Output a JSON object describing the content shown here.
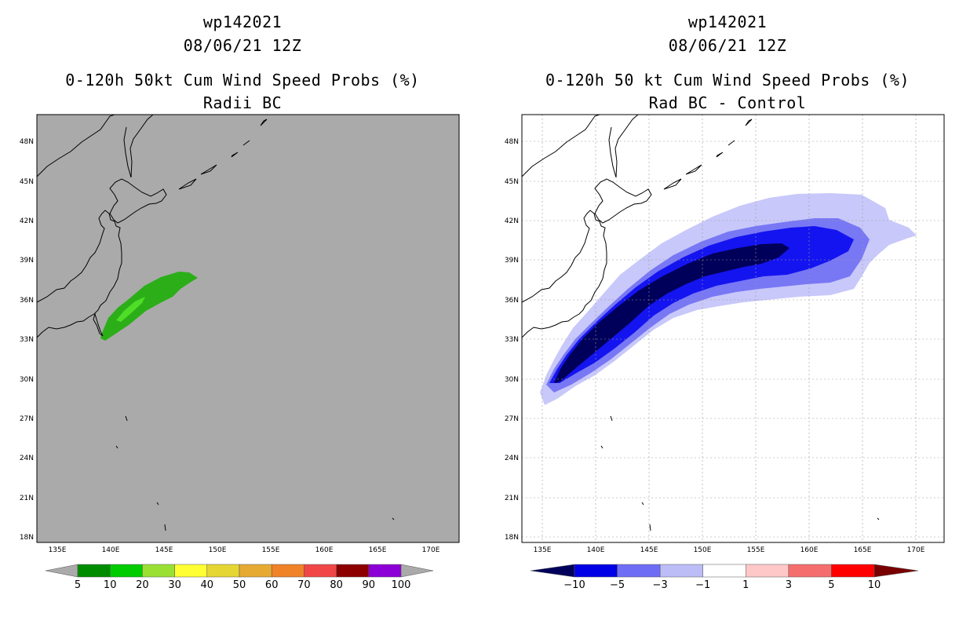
{
  "left_panel": {
    "title_line1": "wp142021",
    "title_line2": "08/06/21 12Z",
    "title_line3": "0-120h 50kt Cum Wind Speed Probs (%)",
    "title_line4": "Radii BC",
    "lon_labels": [
      "135E",
      "140E",
      "145E",
      "150E",
      "155E",
      "160E",
      "165E",
      "170E"
    ],
    "lat_labels": [
      "48N",
      "45N",
      "42N",
      "39N",
      "36N",
      "33N",
      "30N",
      "27N",
      "24N",
      "21N",
      "18N"
    ],
    "colorbar": {
      "labels": [
        "5",
        "10",
        "20",
        "30",
        "40",
        "50",
        "60",
        "70",
        "80",
        "90",
        "100"
      ],
      "colors": [
        "#008c00",
        "#00cc00",
        "#99e033",
        "#ffff33",
        "#e6d633",
        "#e6aa33",
        "#f08228",
        "#f04646",
        "#8c0000",
        "#8c00d7"
      ]
    },
    "colors": {
      "background": "#aaaaaa",
      "prob_5_10": "#2cae19",
      "prob_10_20": "#4fdd28"
    }
  },
  "right_panel": {
    "title_line1": "wp142021",
    "title_line2": "08/06/21 12Z",
    "title_line3": "0-120h 50 kt Cum Wind Speed Probs (%)",
    "title_line4": "Rad BC - Control",
    "lon_labels": [
      "135E",
      "140E",
      "145E",
      "150E",
      "155E",
      "160E",
      "165E",
      "170E"
    ],
    "lat_labels": [
      "48N",
      "45N",
      "42N",
      "39N",
      "36N",
      "33N",
      "30N",
      "27N",
      "24N",
      "21N",
      "18N"
    ],
    "colorbar": {
      "labels": [
        "−10",
        "−5",
        "−3",
        "−1",
        "1",
        "3",
        "5",
        "10"
      ],
      "colors": [
        "#0000e6",
        "#6e6ef5",
        "#bcbcf7",
        "#ffffff",
        "#ffc8c8",
        "#f56e6e",
        "#ff0000"
      ],
      "low_color": "#00005a",
      "high_color": "#780000"
    },
    "colors": {
      "band_1_3": "#c8c8fa",
      "band_3_5": "#7878f5",
      "band_5_10": "#1414f0",
      "band_lt_10": "#00005a"
    }
  }
}
